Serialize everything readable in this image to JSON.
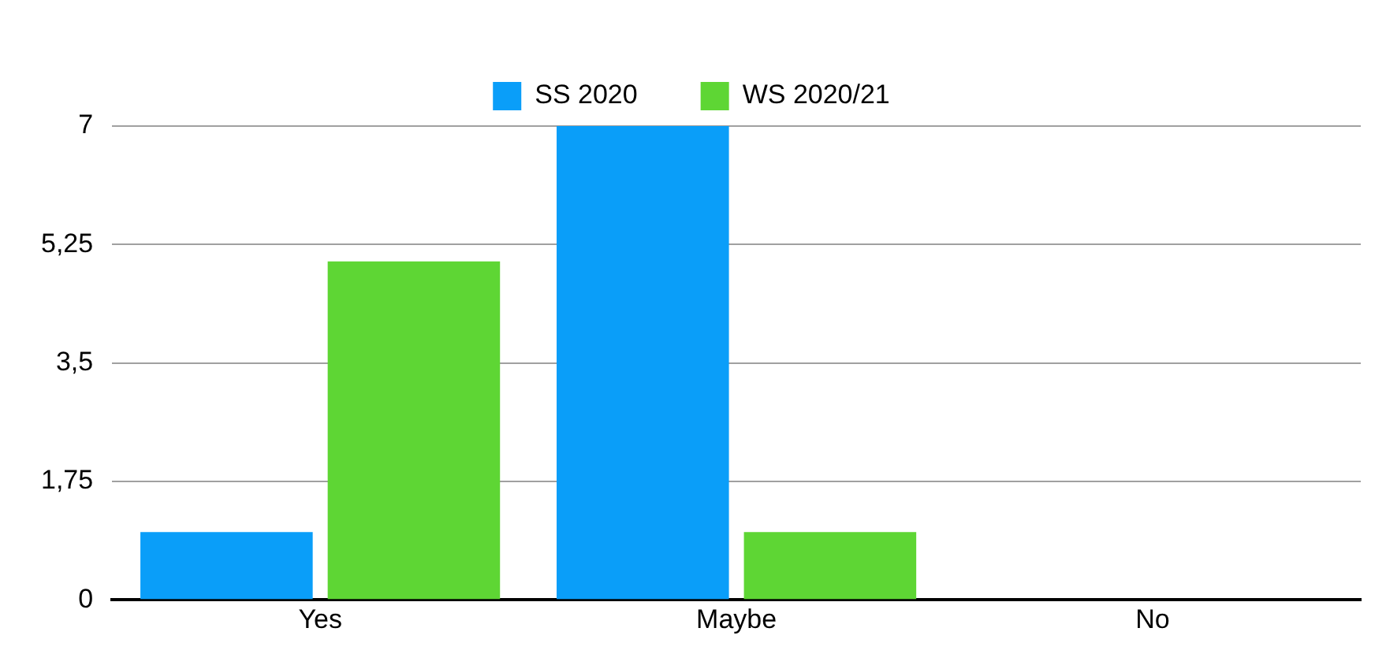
{
  "chart_data": {
    "type": "bar",
    "categories": [
      "Yes",
      "Maybe",
      "No"
    ],
    "series": [
      {
        "name": "SS 2020",
        "color": "#0a9ef9",
        "values": [
          1,
          7,
          0
        ]
      },
      {
        "name": "WS 2020/21",
        "color": "#5ed634",
        "values": [
          5,
          1,
          0
        ]
      }
    ],
    "ylim": [
      0,
      7
    ],
    "yticks": [
      0,
      {
        "value": 1.75,
        "label": "1,75"
      },
      {
        "value": 3.5,
        "label": "3,5"
      },
      {
        "value": 5.25,
        "label": "5,25"
      },
      7
    ],
    "grid": "y",
    "legend": "top"
  }
}
